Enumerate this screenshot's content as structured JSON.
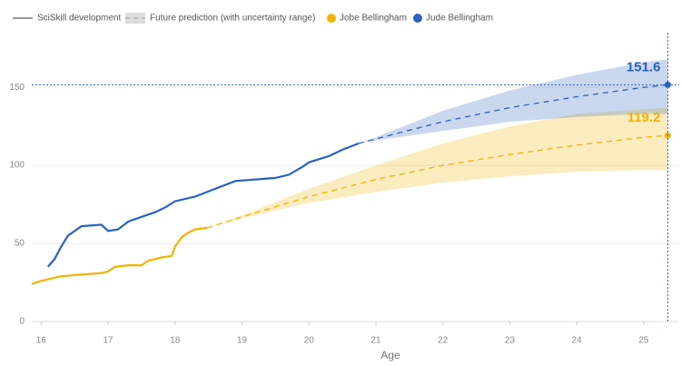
{
  "chart_data": {
    "type": "line",
    "legend": [
      "SciSkill development",
      "Future prediction (with uncertainty range)"
    ],
    "x_label": "Age",
    "xlim": [
      15.86,
      25.53
    ],
    "xticks": [
      16,
      17,
      18,
      19,
      20,
      21,
      22,
      23,
      24,
      25
    ],
    "ylim": [
      0,
      185
    ],
    "yticks": [
      0,
      50,
      100,
      150
    ],
    "grid": true,
    "series": [
      {
        "name": "Jobe Bellingham",
        "color": "#f0b400",
        "x": [
          15.86,
          16.0,
          16.3,
          16.6,
          16.9,
          17.0,
          17.1,
          17.3,
          17.5,
          17.6,
          17.8,
          17.95,
          18.0,
          18.1,
          18.2,
          18.3,
          18.48
        ],
        "values": [
          24,
          26,
          29,
          30,
          31,
          32,
          35,
          36,
          36,
          39,
          41,
          42,
          48,
          54,
          57,
          59,
          60
        ],
        "prediction": {
          "x": [
            18.48,
            19,
            20,
            21,
            22,
            23,
            24,
            25,
            25.36
          ],
          "values": [
            60,
            67,
            80,
            91,
            100,
            107,
            113,
            118,
            119.2
          ],
          "lower": [
            60,
            66,
            76,
            83,
            89,
            93,
            96,
            97,
            97
          ],
          "upper": [
            60,
            68,
            85,
            100,
            114,
            125,
            133,
            136,
            137
          ]
        }
      },
      {
        "name": "Jude Bellingham",
        "color": "#2a62c0",
        "x": [
          16.1,
          16.2,
          16.3,
          16.4,
          16.5,
          16.6,
          16.9,
          17.0,
          17.15,
          17.3,
          17.5,
          17.7,
          17.85,
          18.0,
          18.3,
          18.6,
          18.9,
          19.2,
          19.5,
          19.7,
          19.9,
          20.0,
          20.3,
          20.5,
          20.74
        ],
        "values": [
          35,
          40,
          48,
          55,
          58,
          61,
          62,
          58,
          59,
          64,
          67,
          70,
          73,
          77,
          80,
          85,
          90,
          91,
          92,
          94,
          99,
          102,
          106,
          110,
          114
        ],
        "prediction": {
          "x": [
            20.74,
            21,
            22,
            23,
            24,
            25,
            25.36
          ],
          "values": [
            114,
            117,
            128,
            137,
            144,
            150,
            151.6
          ],
          "lower": [
            114,
            116,
            122,
            128,
            131,
            133,
            133
          ],
          "upper": [
            114,
            118,
            135,
            148,
            158,
            166,
            168
          ]
        }
      }
    ]
  }
}
